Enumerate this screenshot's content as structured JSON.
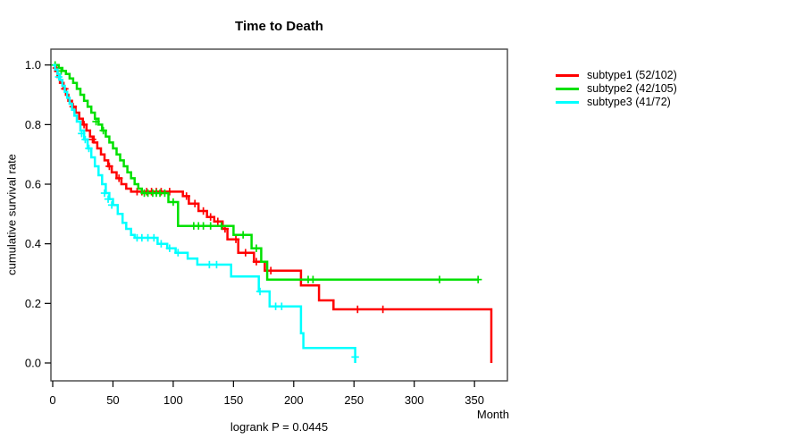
{
  "title": "Time to Death",
  "axes": {
    "y_label": "cumulative survival rate",
    "x_unit_label": "Month"
  },
  "footer": {
    "logrank_label": "logrank P = 0.0445"
  },
  "legend": {
    "items": [
      {
        "label": "subtype1 (52/102)",
        "color": "#ff0000"
      },
      {
        "label": "subtype2 (42/105)",
        "color": "#00e000"
      },
      {
        "label": "subtype3 (41/72)",
        "color": "#00ffff"
      }
    ]
  },
  "chart_data": {
    "type": "line",
    "subtype": "kaplan-meier-step",
    "title": "Time to Death",
    "xlabel": "Month",
    "ylabel": "cumulative survival rate",
    "annotation": "logrank P = 0.0445",
    "grid": false,
    "legend_position": "right-outside",
    "x_ticks": [
      0,
      50,
      100,
      150,
      200,
      250,
      300,
      350
    ],
    "y_ticks": [
      0.0,
      0.2,
      0.4,
      0.6,
      0.8,
      1.0
    ],
    "xlim": [
      -2,
      377
    ],
    "ylim": [
      -0.06,
      1.05
    ],
    "series": [
      {
        "name": "subtype1 (52/102)",
        "color": "#ff0000",
        "steps": [
          [
            0,
            1.0
          ],
          [
            2,
            0.98
          ],
          [
            4,
            0.96
          ],
          [
            6,
            0.94
          ],
          [
            9,
            0.92
          ],
          [
            11,
            0.9
          ],
          [
            13,
            0.88
          ],
          [
            16,
            0.86
          ],
          [
            19,
            0.84
          ],
          [
            22,
            0.82
          ],
          [
            25,
            0.8
          ],
          [
            28,
            0.78
          ],
          [
            31,
            0.76
          ],
          [
            34,
            0.74
          ],
          [
            37,
            0.72
          ],
          [
            40,
            0.7
          ],
          [
            43,
            0.68
          ],
          [
            46,
            0.66
          ],
          [
            49,
            0.64
          ],
          [
            53,
            0.62
          ],
          [
            57,
            0.6
          ],
          [
            61,
            0.585
          ],
          [
            65,
            0.575
          ],
          [
            108,
            0.56
          ],
          [
            113,
            0.535
          ],
          [
            121,
            0.51
          ],
          [
            128,
            0.49
          ],
          [
            134,
            0.475
          ],
          [
            141,
            0.45
          ],
          [
            145,
            0.415
          ],
          [
            154,
            0.37
          ],
          [
            167,
            0.34
          ],
          [
            176,
            0.31
          ],
          [
            206,
            0.26
          ],
          [
            221,
            0.21
          ],
          [
            233,
            0.18
          ],
          [
            364,
            0.0
          ]
        ],
        "censors": [
          [
            3,
            0.99
          ],
          [
            10,
            0.92
          ],
          [
            17,
            0.86
          ],
          [
            26,
            0.8
          ],
          [
            33,
            0.75
          ],
          [
            47,
            0.66
          ],
          [
            55,
            0.62
          ],
          [
            70,
            0.575
          ],
          [
            74,
            0.575
          ],
          [
            78,
            0.575
          ],
          [
            82,
            0.575
          ],
          [
            86,
            0.575
          ],
          [
            90,
            0.575
          ],
          [
            97,
            0.575
          ],
          [
            111,
            0.56
          ],
          [
            118,
            0.535
          ],
          [
            125,
            0.51
          ],
          [
            131,
            0.49
          ],
          [
            137,
            0.475
          ],
          [
            143,
            0.45
          ],
          [
            152,
            0.415
          ],
          [
            160,
            0.37
          ],
          [
            169,
            0.34
          ],
          [
            181,
            0.31
          ],
          [
            253,
            0.18
          ],
          [
            274,
            0.18
          ]
        ]
      },
      {
        "name": "subtype2 (42/105)",
        "color": "#00e000",
        "steps": [
          [
            0,
            1.0
          ],
          [
            5,
            0.99
          ],
          [
            8,
            0.98
          ],
          [
            11,
            0.97
          ],
          [
            14,
            0.955
          ],
          [
            17,
            0.94
          ],
          [
            20,
            0.92
          ],
          [
            23,
            0.9
          ],
          [
            26,
            0.88
          ],
          [
            29,
            0.86
          ],
          [
            32,
            0.84
          ],
          [
            35,
            0.82
          ],
          [
            38,
            0.8
          ],
          [
            41,
            0.78
          ],
          [
            44,
            0.76
          ],
          [
            47,
            0.74
          ],
          [
            50,
            0.72
          ],
          [
            53,
            0.7
          ],
          [
            56,
            0.68
          ],
          [
            59,
            0.66
          ],
          [
            62,
            0.64
          ],
          [
            65,
            0.62
          ],
          [
            68,
            0.6
          ],
          [
            71,
            0.585
          ],
          [
            74,
            0.57
          ],
          [
            96,
            0.54
          ],
          [
            104,
            0.46
          ],
          [
            150,
            0.43
          ],
          [
            165,
            0.385
          ],
          [
            173,
            0.34
          ],
          [
            178,
            0.28
          ],
          [
            353,
            0.28
          ]
        ],
        "censors": [
          [
            2,
            1.0
          ],
          [
            7,
            0.98
          ],
          [
            36,
            0.81
          ],
          [
            42,
            0.78
          ],
          [
            76,
            0.57
          ],
          [
            79,
            0.57
          ],
          [
            83,
            0.57
          ],
          [
            86,
            0.57
          ],
          [
            89,
            0.57
          ],
          [
            93,
            0.57
          ],
          [
            100,
            0.54
          ],
          [
            117,
            0.46
          ],
          [
            121,
            0.46
          ],
          [
            125,
            0.46
          ],
          [
            131,
            0.46
          ],
          [
            140,
            0.46
          ],
          [
            158,
            0.43
          ],
          [
            169,
            0.385
          ],
          [
            212,
            0.28
          ],
          [
            216,
            0.28
          ],
          [
            321,
            0.28
          ],
          [
            353,
            0.28
          ]
        ]
      },
      {
        "name": "subtype3 (41/72)",
        "color": "#00ffff",
        "steps": [
          [
            0,
            1.0
          ],
          [
            2,
            0.985
          ],
          [
            4,
            0.97
          ],
          [
            6,
            0.95
          ],
          [
            8,
            0.93
          ],
          [
            10,
            0.91
          ],
          [
            12,
            0.89
          ],
          [
            14,
            0.87
          ],
          [
            16,
            0.85
          ],
          [
            18,
            0.83
          ],
          [
            20,
            0.81
          ],
          [
            23,
            0.78
          ],
          [
            26,
            0.75
          ],
          [
            29,
            0.72
          ],
          [
            32,
            0.69
          ],
          [
            35,
            0.66
          ],
          [
            38,
            0.63
          ],
          [
            41,
            0.6
          ],
          [
            44,
            0.57
          ],
          [
            47,
            0.55
          ],
          [
            50,
            0.53
          ],
          [
            54,
            0.5
          ],
          [
            58,
            0.47
          ],
          [
            61,
            0.45
          ],
          [
            65,
            0.43
          ],
          [
            68,
            0.42
          ],
          [
            87,
            0.4
          ],
          [
            95,
            0.385
          ],
          [
            102,
            0.37
          ],
          [
            112,
            0.35
          ],
          [
            120,
            0.33
          ],
          [
            148,
            0.29
          ],
          [
            171,
            0.24
          ],
          [
            180,
            0.19
          ],
          [
            206,
            0.1
          ],
          [
            208,
            0.05
          ],
          [
            251,
            0.0
          ]
        ],
        "censors": [
          [
            5,
            0.96
          ],
          [
            24,
            0.77
          ],
          [
            27,
            0.75
          ],
          [
            30,
            0.72
          ],
          [
            43,
            0.57
          ],
          [
            46,
            0.55
          ],
          [
            49,
            0.53
          ],
          [
            70,
            0.42
          ],
          [
            74,
            0.42
          ],
          [
            79,
            0.42
          ],
          [
            84,
            0.42
          ],
          [
            90,
            0.4
          ],
          [
            97,
            0.385
          ],
          [
            104,
            0.37
          ],
          [
            130,
            0.33
          ],
          [
            136,
            0.33
          ],
          [
            172,
            0.24
          ],
          [
            185,
            0.19
          ],
          [
            190,
            0.19
          ],
          [
            251,
            0.02
          ]
        ]
      }
    ]
  }
}
